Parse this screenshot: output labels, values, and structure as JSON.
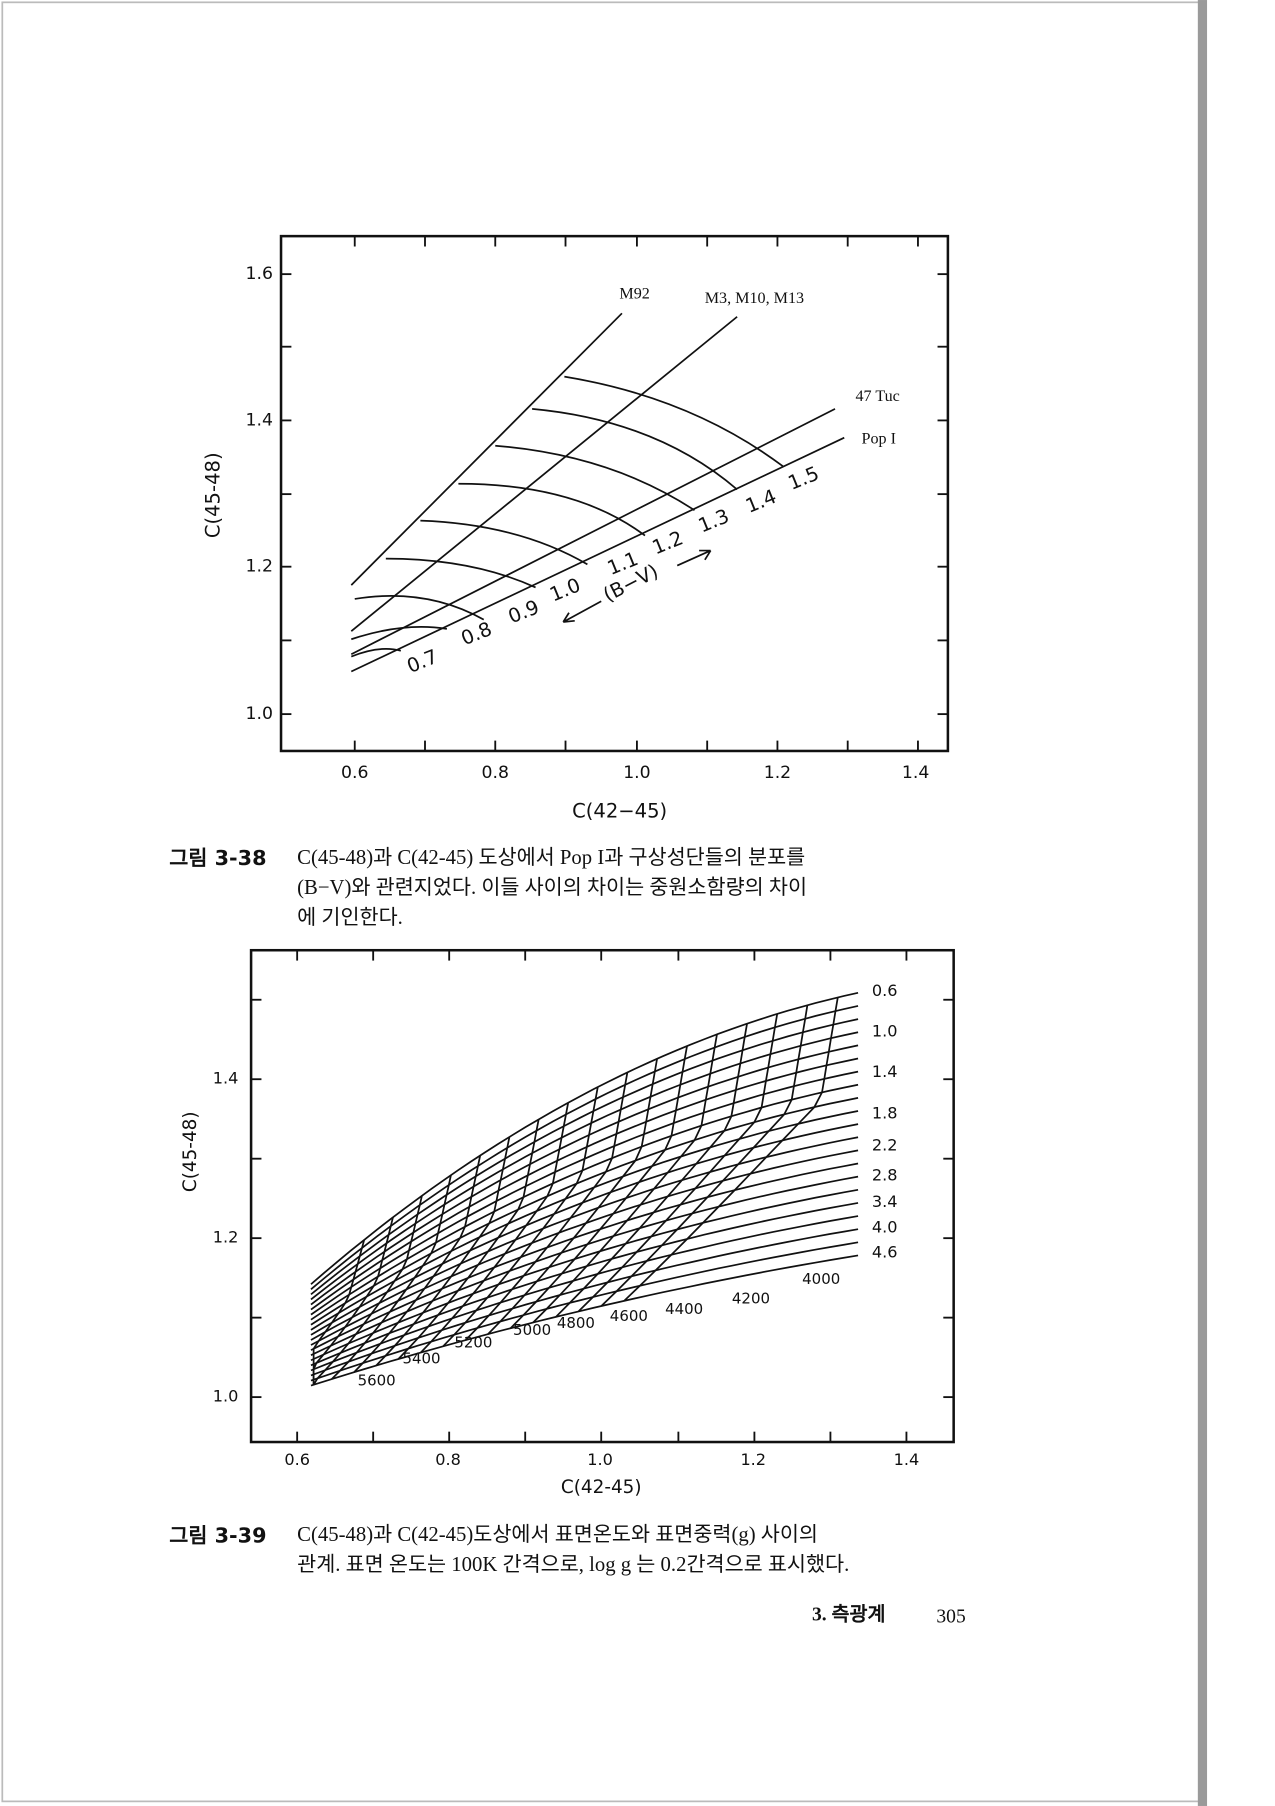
{
  "figures": [
    {
      "y_axis_label": "C(45-48)",
      "x_axis_label": "C(42−45)",
      "x_tick_labels": [
        "0.6",
        "0.8",
        "1.0",
        "1.2",
        "1.4"
      ],
      "y_tick_labels": [
        "1.6",
        "1.4",
        "1.2",
        "1.0"
      ],
      "curve_labels": [
        "M92",
        "M3, M10, M13",
        "47 Tuc",
        "Pop I"
      ],
      "point_labels": [
        "0.7",
        "0.8",
        "0.9",
        "1.0",
        "1.1",
        "1.2",
        "1.3",
        "1.4",
        "1.5"
      ],
      "arrow_label": "(B−V)",
      "caption": {
        "number": "그림 3-38",
        "lines": [
          "C(45-48)과 C(42-45) 도상에서 Pop I과 구상성단들의 분포를",
          "(B−V)와 관련지었다. 이들 사이의 차이는 중원소함량의 차이",
          "에 기인한다."
        ]
      }
    },
    {
      "y_axis_label": "C(45-48)",
      "x_axis_label": "C(42-45)",
      "x_tick_labels": [
        "0.6",
        "0.8",
        "1.0",
        "1.2",
        "1.4"
      ],
      "y_tick_labels": [
        "1.4",
        "1.2",
        "1.0"
      ],
      "curve_labels": [
        "0.6",
        "1.0",
        "1.4",
        "1.8",
        "2.2",
        "2.8",
        "3.4",
        "4.0",
        "4.6"
      ],
      "point_labels": [
        "4000",
        "4200",
        "4400",
        "4600",
        "4800",
        "5000",
        "5200",
        "5400",
        "5600"
      ],
      "caption": {
        "number": "그림 3-39",
        "lines": [
          "C(45-48)과 C(42-45)도상에서 표면온도와 표면중력(g) 사이의",
          "관계. 표면 온도는 100K 간격으로, log g 는 0.2간격으로 표시했다."
        ]
      }
    }
  ],
  "footer": {
    "section": "3. 측광계",
    "page": "305"
  }
}
